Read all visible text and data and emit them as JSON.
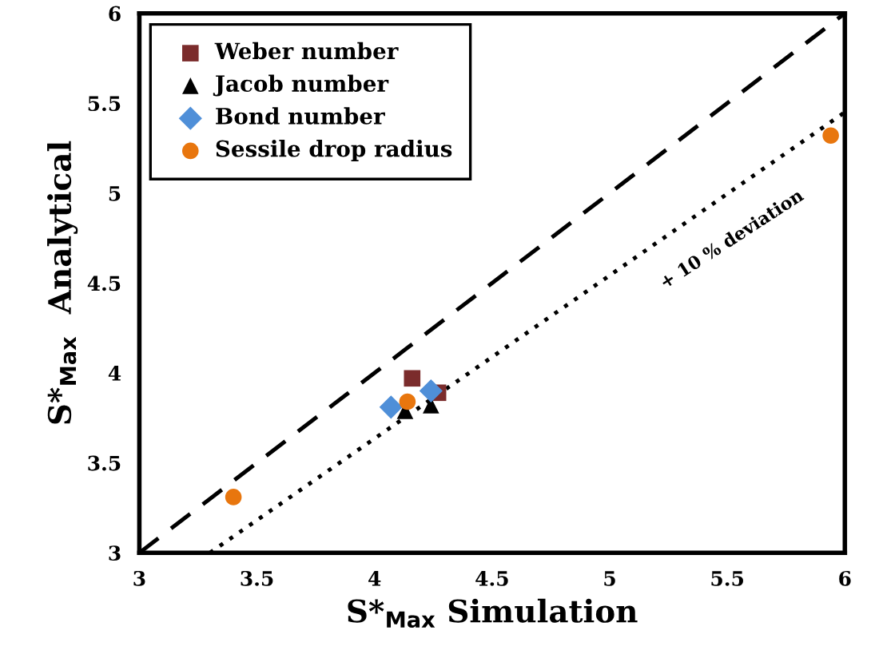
{
  "chart_data": {
    "type": "scatter",
    "xlabel": "S*$_{Max}$ Simulation",
    "ylabel": "S*$_{Max}$  Analytical",
    "xlim": [
      3,
      6
    ],
    "ylim": [
      3,
      6
    ],
    "xticks": [
      3,
      3.5,
      4,
      4.5,
      5,
      5.5,
      6
    ],
    "yticks": [
      3,
      3.5,
      4,
      4.5,
      5,
      5.5,
      6
    ],
    "grid": false,
    "legend": "top left",
    "series": [
      {
        "type": "line",
        "x": [
          3,
          6
        ],
        "values": [
          3,
          6
        ],
        "color": "#000000",
        "line_style": "dashed",
        "marker": "none"
      },
      {
        "type": "line",
        "x": [
          3.3,
          6
        ],
        "values": [
          3,
          5.45
        ],
        "color": "#000000",
        "line_style": "dotted",
        "marker": "none"
      },
      {
        "name": "Weber number",
        "x": [
          4.16,
          4.27
        ],
        "values": [
          3.97,
          3.89
        ],
        "color": "#7b2c2c",
        "marker": "square"
      },
      {
        "name": "Jacob number",
        "x": [
          4.13,
          4.24
        ],
        "values": [
          3.79,
          3.82
        ],
        "color": "#000000",
        "marker": "triangle"
      },
      {
        "name": "Bond number",
        "x": [
          4.07,
          4.24
        ],
        "values": [
          3.81,
          3.9
        ],
        "color": "#4f8fd8",
        "marker": "diamond"
      },
      {
        "name": "Sessile drop radius",
        "x": [
          3.4,
          4.14,
          5.94
        ],
        "values": [
          3.31,
          3.84,
          5.32
        ],
        "color": "#e8760e",
        "marker": "circle"
      }
    ],
    "annotations": [
      "+ 10 % deviation"
    ]
  }
}
